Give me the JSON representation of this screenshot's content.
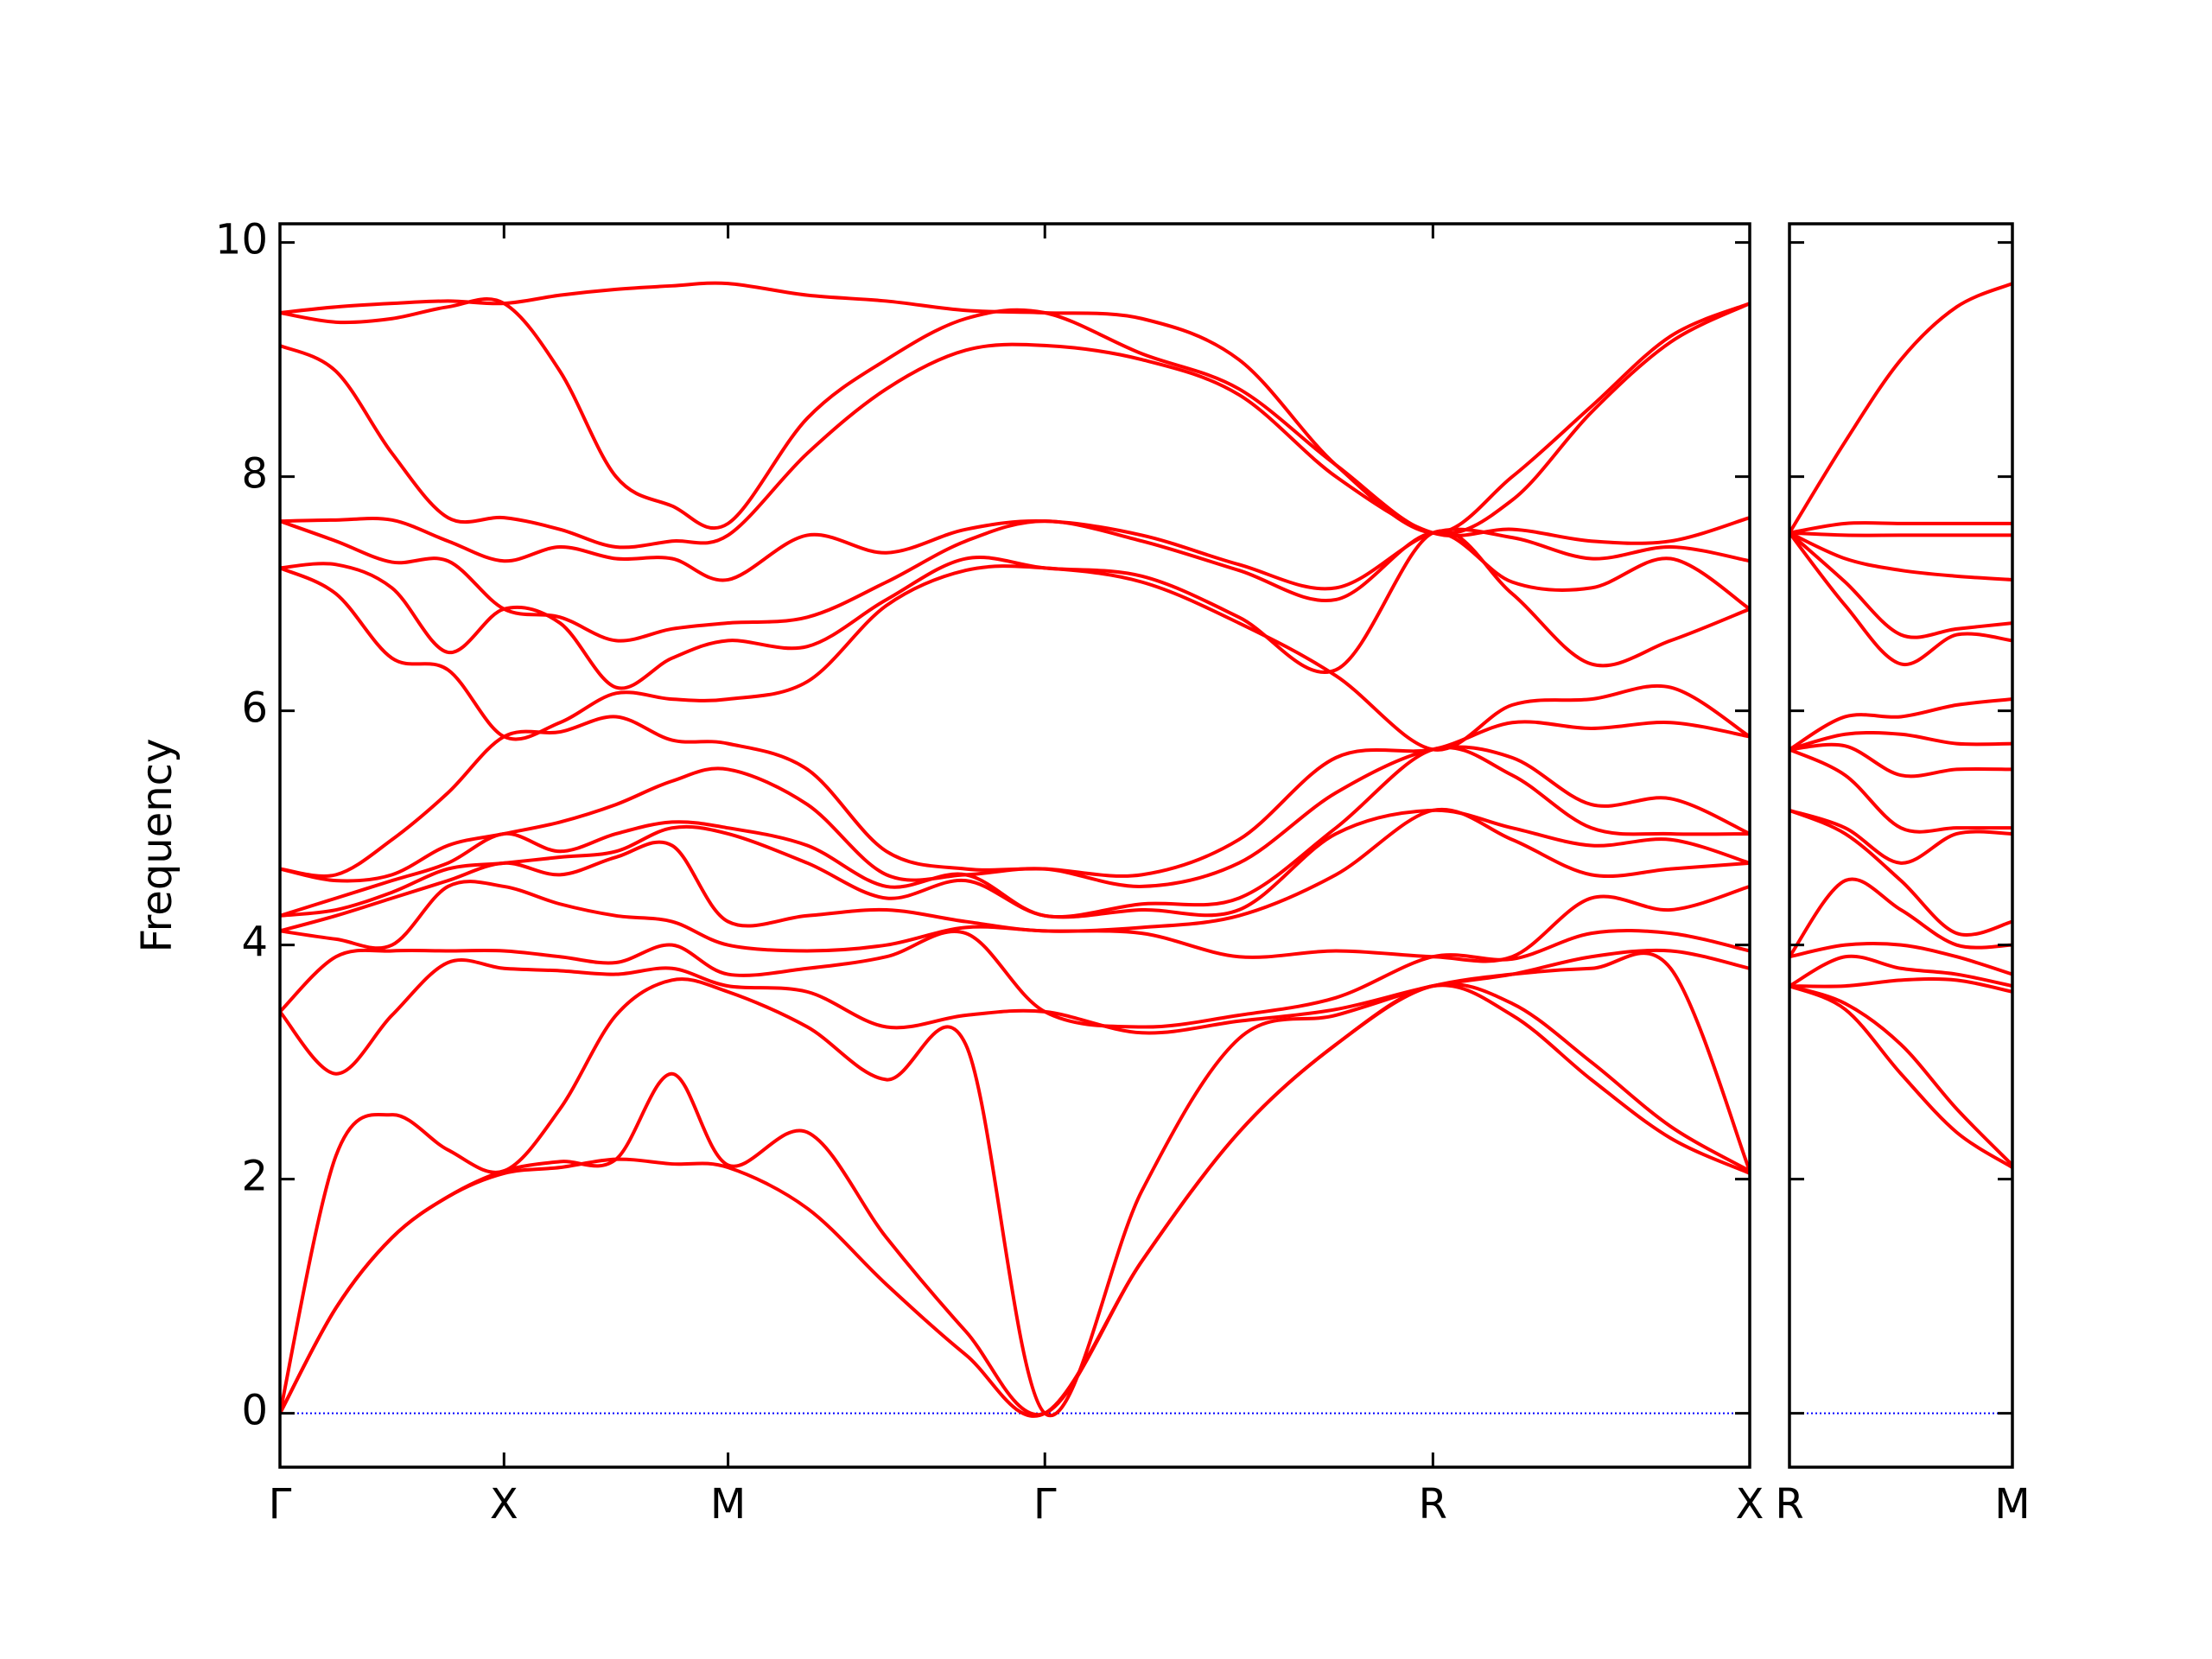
{
  "chart_data": [
    {
      "type": "line",
      "ylabel": "Frequency",
      "x": [
        0,
        0.25,
        0.5,
        0.75,
        1,
        1.25,
        1.5,
        1.75,
        2,
        2.354,
        2.707,
        3.061,
        3.414,
        3.847,
        4.28,
        4.713,
        5.146,
        5.5,
        5.853,
        6.207,
        6.56
      ],
      "xlim": [
        0,
        6.56
      ],
      "xticks": [
        {
          "value": 0,
          "label": "Γ"
        },
        {
          "value": 1,
          "label": "X"
        },
        {
          "value": 2,
          "label": "M"
        },
        {
          "value": 3.414,
          "label": "Γ"
        },
        {
          "value": 5.146,
          "label": "R"
        },
        {
          "value": 6.56,
          "label": "X"
        }
      ],
      "ylim": [
        -0.46,
        10.16
      ],
      "yticks": [
        0,
        2,
        4,
        6,
        8,
        10
      ],
      "show_ytick_labels": true,
      "color": "#ff0000",
      "zero_line_color": "#0000ff",
      "series": [
        {
          "values": [
            0,
            0.9,
            1.5,
            1.85,
            2.05,
            2.1,
            2.17,
            2.13,
            2.1,
            1.75,
            1.1,
            0.5,
            0,
            1.3,
            2.4,
            3.15,
            3.65,
            3.4,
            2.85,
            2.35,
            2.05
          ]
        },
        {
          "values": [
            0,
            0.9,
            1.5,
            1.85,
            2.07,
            2.15,
            2.17,
            2.9,
            2.12,
            2.4,
            1.5,
            0.7,
            0,
            1.3,
            2.4,
            3.15,
            3.65,
            3.5,
            3.0,
            2.45,
            2.07
          ]
        },
        {
          "values": [
            0,
            2.2,
            2.55,
            2.25,
            2.07,
            2.6,
            3.4,
            3.7,
            3.6,
            3.3,
            2.85,
            3.15,
            0,
            1.9,
            3.2,
            3.4,
            3.65,
            3.75,
            3.8,
            3.8,
            2.07
          ]
        },
        {
          "values": [
            3.43,
            2.9,
            3.4,
            3.85,
            3.8,
            3.78,
            3.75,
            3.8,
            3.65,
            3.6,
            3.3,
            3.4,
            3.43,
            3.25,
            3.35,
            3.45,
            3.65,
            3.75,
            3.9,
            3.95,
            3.8
          ]
        },
        {
          "values": [
            3.43,
            3.9,
            3.95,
            3.95,
            3.95,
            3.9,
            3.85,
            4.0,
            3.75,
            3.8,
            3.9,
            4.1,
            3.43,
            3.3,
            3.4,
            3.55,
            3.9,
            3.88,
            4.1,
            4.1,
            3.95
          ]
        },
        {
          "values": [
            4.12,
            4.05,
            4.0,
            4.5,
            4.5,
            4.35,
            4.25,
            4.2,
            4.0,
            3.95,
            4.0,
            4.15,
            4.12,
            4.1,
            3.9,
            3.95,
            3.9,
            3.9,
            4.4,
            4.3,
            4.5
          ]
        },
        {
          "values": [
            4.12,
            4.25,
            4.4,
            4.55,
            4.7,
            4.6,
            4.75,
            4.85,
            4.2,
            4.25,
            4.3,
            4.2,
            4.12,
            4.15,
            4.25,
            4.6,
            5.15,
            4.9,
            4.6,
            4.65,
            4.7
          ]
        },
        {
          "values": [
            4.25,
            4.3,
            4.45,
            4.65,
            4.7,
            4.75,
            4.8,
            5.0,
            4.95,
            4.7,
            4.4,
            4.55,
            4.25,
            4.3,
            4.3,
            4.95,
            5.15,
            5.0,
            4.85,
            4.9,
            4.7
          ]
        },
        {
          "values": [
            4.25,
            4.4,
            4.55,
            4.7,
            4.95,
            4.8,
            4.95,
            5.05,
            5.0,
            4.85,
            4.5,
            4.6,
            4.25,
            4.35,
            4.4,
            5.0,
            5.67,
            5.45,
            5.0,
            4.95,
            4.95
          ]
        },
        {
          "values": [
            4.65,
            4.55,
            4.6,
            4.85,
            4.95,
            5.05,
            5.2,
            5.4,
            5.5,
            5.2,
            4.6,
            4.6,
            4.65,
            4.5,
            4.7,
            5.3,
            5.67,
            5.6,
            5.2,
            5.25,
            4.95
          ]
        },
        {
          "values": [
            4.65,
            4.6,
            4.9,
            5.3,
            5.78,
            5.82,
            5.95,
            5.75,
            5.72,
            5.5,
            4.8,
            4.65,
            4.65,
            4.6,
            4.9,
            5.6,
            5.67,
            5.9,
            5.85,
            5.9,
            5.78
          ]
        },
        {
          "values": [
            7.22,
            7.0,
            6.45,
            6.35,
            5.78,
            5.9,
            6.15,
            6.1,
            6.1,
            6.25,
            6.9,
            7.2,
            7.22,
            7.1,
            6.75,
            6.3,
            5.67,
            6.05,
            6.1,
            6.2,
            5.78
          ]
        },
        {
          "values": [
            7.22,
            7.25,
            7.05,
            6.5,
            6.87,
            6.75,
            6.2,
            6.45,
            6.6,
            6.55,
            6.95,
            7.3,
            7.22,
            7.15,
            6.8,
            6.35,
            7.52,
            7.0,
            6.4,
            6.6,
            6.87
          ]
        },
        {
          "values": [
            7.62,
            7.45,
            7.27,
            7.28,
            6.87,
            6.8,
            6.6,
            6.7,
            6.75,
            6.8,
            7.1,
            7.45,
            7.62,
            7.45,
            7.2,
            6.95,
            7.52,
            7.1,
            7.05,
            7.3,
            6.87
          ]
        },
        {
          "values": [
            7.62,
            7.63,
            7.63,
            7.45,
            7.28,
            7.4,
            7.3,
            7.3,
            7.12,
            7.5,
            7.35,
            7.55,
            7.62,
            7.5,
            7.25,
            7.05,
            7.52,
            7.48,
            7.3,
            7.4,
            7.28
          ]
        },
        {
          "values": [
            9.12,
            8.9,
            8.2,
            7.65,
            7.65,
            7.55,
            7.4,
            7.45,
            7.5,
            8.2,
            8.75,
            9.08,
            9.12,
            9.0,
            8.7,
            8.0,
            7.52,
            7.55,
            7.45,
            7.45,
            7.65
          ]
        },
        {
          "values": [
            9.4,
            9.32,
            9.35,
            9.45,
            9.48,
            8.9,
            8.0,
            7.75,
            7.6,
            8.5,
            9.0,
            9.35,
            9.4,
            9.05,
            8.75,
            8.1,
            7.52,
            7.8,
            8.55,
            9.15,
            9.48
          ]
        },
        {
          "values": [
            9.4,
            9.45,
            9.48,
            9.5,
            9.48,
            9.55,
            9.6,
            9.63,
            9.65,
            9.55,
            9.5,
            9.42,
            9.4,
            9.35,
            9.0,
            8.1,
            7.52,
            8.0,
            8.6,
            9.2,
            9.48
          ]
        }
      ]
    },
    {
      "type": "line",
      "x": [
        0,
        0.25,
        0.5,
        0.75,
        1
      ],
      "xlim": [
        0,
        1
      ],
      "xticks": [
        {
          "value": 0,
          "label": "R"
        },
        {
          "value": 1,
          "label": "M"
        }
      ],
      "ylim": [
        -0.46,
        10.16
      ],
      "yticks": [
        0,
        2,
        4,
        6,
        8,
        10
      ],
      "show_ytick_labels": false,
      "color": "#ff0000",
      "zero_line_color": "#0000ff",
      "series": [
        {
          "values": [
            3.65,
            3.45,
            2.9,
            2.4,
            2.1
          ]
        },
        {
          "values": [
            3.65,
            3.5,
            3.15,
            2.6,
            2.12
          ]
        },
        {
          "values": [
            3.65,
            3.65,
            3.7,
            3.7,
            3.6
          ]
        },
        {
          "values": [
            3.65,
            3.9,
            3.8,
            3.75,
            3.65
          ]
        },
        {
          "values": [
            3.9,
            4.0,
            4.0,
            3.9,
            3.75
          ]
        },
        {
          "values": [
            3.9,
            4.55,
            4.3,
            4.0,
            4.0
          ]
        },
        {
          "values": [
            5.15,
            4.95,
            4.55,
            4.1,
            4.2
          ]
        },
        {
          "values": [
            5.15,
            5.0,
            4.7,
            4.95,
            4.95
          ]
        },
        {
          "values": [
            5.67,
            5.45,
            5.0,
            5.0,
            5.0
          ]
        },
        {
          "values": [
            5.67,
            5.7,
            5.45,
            5.5,
            5.5
          ]
        },
        {
          "values": [
            5.67,
            5.8,
            5.8,
            5.72,
            5.72
          ]
        },
        {
          "values": [
            5.67,
            5.95,
            5.95,
            6.05,
            6.1
          ]
        },
        {
          "values": [
            7.52,
            6.9,
            6.4,
            6.65,
            6.6
          ]
        },
        {
          "values": [
            7.52,
            7.1,
            6.65,
            6.7,
            6.75
          ]
        },
        {
          "values": [
            7.52,
            7.3,
            7.2,
            7.15,
            7.12
          ]
        },
        {
          "values": [
            7.52,
            7.5,
            7.5,
            7.5,
            7.5
          ]
        },
        {
          "values": [
            7.52,
            7.6,
            7.6,
            7.6,
            7.6
          ]
        },
        {
          "values": [
            7.52,
            8.3,
            9.0,
            9.45,
            9.65
          ]
        }
      ]
    }
  ]
}
